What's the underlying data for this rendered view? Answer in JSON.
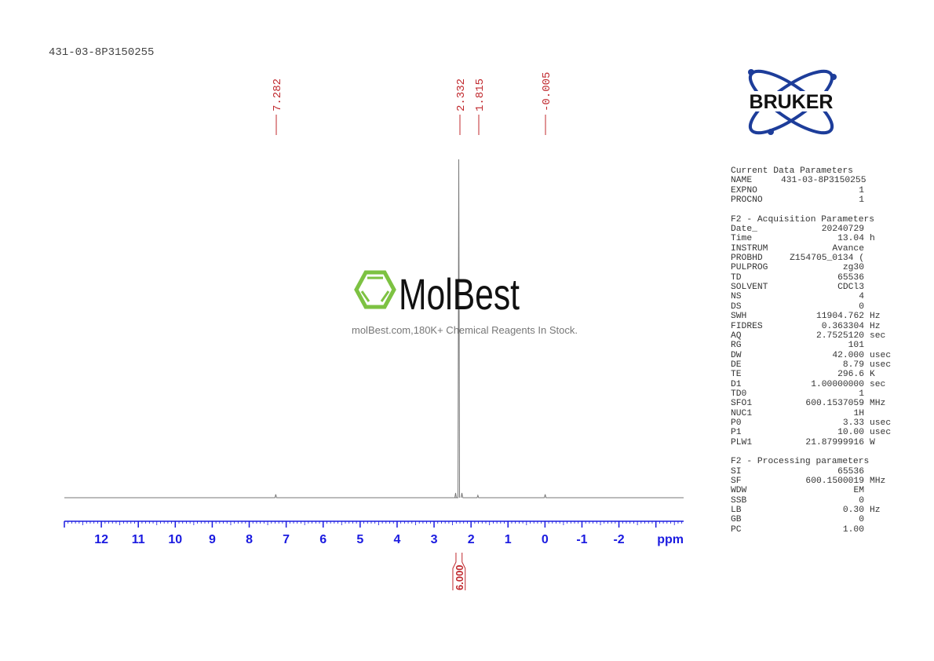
{
  "sample_name": "431-03-8P3150255",
  "watermark": {
    "brand": "MolBest",
    "tagline": "molBest.com,180K+ Chemical Reagents In Stock.",
    "color": "#7dc242"
  },
  "logo": {
    "text": "BRUKER",
    "color": "#1d3d9a"
  },
  "colors": {
    "axis": "#1a1ae0",
    "peak_label": "#c0282d",
    "spectrum": "#777777"
  },
  "chart_data": {
    "type": "line",
    "xlabel": "ppm",
    "xlim": [
      13.0,
      -3.75
    ],
    "x_reversed": true,
    "xticks": [
      "12",
      "11",
      "10",
      "9",
      "8",
      "7",
      "6",
      "5",
      "4",
      "3",
      "2",
      "1",
      "0",
      "-1",
      "-2"
    ],
    "xtick_values": [
      12,
      11,
      10,
      9,
      8,
      7,
      6,
      5,
      4,
      3,
      2,
      1,
      0,
      -1,
      -2
    ],
    "peak_labels": [
      "7.282",
      "2.332",
      "1.815",
      "-0.005"
    ],
    "peaks": [
      {
        "ppm": 7.282,
        "relative_height": 0.01
      },
      {
        "ppm": 2.332,
        "relative_height": 1.0
      },
      {
        "ppm": 1.815,
        "relative_height": 0.004
      },
      {
        "ppm": -0.005,
        "relative_height": 0.01
      }
    ],
    "integrals": [
      {
        "from": 2.45,
        "to": 2.2,
        "value": "6.000"
      }
    ]
  },
  "params": {
    "sections": [
      {
        "title": "Current Data Parameters",
        "rows": [
          {
            "label": "NAME",
            "value": "431-03-8P3150255",
            "unit": ""
          },
          {
            "label": "EXPNO",
            "value": "1",
            "unit": ""
          },
          {
            "label": "PROCNO",
            "value": "1",
            "unit": ""
          }
        ]
      },
      {
        "title": "F2 - Acquisition Parameters",
        "rows": [
          {
            "label": "Date_",
            "value": "20240729",
            "unit": ""
          },
          {
            "label": "Time",
            "value": "13.04",
            "unit": "h"
          },
          {
            "label": "INSTRUM",
            "value": "Avance",
            "unit": ""
          },
          {
            "label": "PROBHD",
            "value": "Z154705_0134 (",
            "unit": ""
          },
          {
            "label": "PULPROG",
            "value": "zg30",
            "unit": ""
          },
          {
            "label": "TD",
            "value": "65536",
            "unit": ""
          },
          {
            "label": "SOLVENT",
            "value": "CDCl3",
            "unit": ""
          },
          {
            "label": "NS",
            "value": "4",
            "unit": ""
          },
          {
            "label": "DS",
            "value": "0",
            "unit": ""
          },
          {
            "label": "SWH",
            "value": "11904.762",
            "unit": "Hz"
          },
          {
            "label": "FIDRES",
            "value": "0.363304",
            "unit": "Hz"
          },
          {
            "label": "AQ",
            "value": "2.7525120",
            "unit": "sec"
          },
          {
            "label": "RG",
            "value": "101",
            "unit": ""
          },
          {
            "label": "DW",
            "value": "42.000",
            "unit": "usec"
          },
          {
            "label": "DE",
            "value": "8.79",
            "unit": "usec"
          },
          {
            "label": "TE",
            "value": "296.6",
            "unit": "K"
          },
          {
            "label": "D1",
            "value": "1.00000000",
            "unit": "sec"
          },
          {
            "label": "TD0",
            "value": "1",
            "unit": ""
          },
          {
            "label": "SFO1",
            "value": "600.1537059",
            "unit": "MHz"
          },
          {
            "label": "NUC1",
            "value": "1H",
            "unit": ""
          },
          {
            "label": "P0",
            "value": "3.33",
            "unit": "usec"
          },
          {
            "label": "P1",
            "value": "10.00",
            "unit": "usec"
          },
          {
            "label": "PLW1",
            "value": "21.87999916",
            "unit": "W"
          }
        ]
      },
      {
        "title": "F2 - Processing parameters",
        "rows": [
          {
            "label": "SI",
            "value": "65536",
            "unit": ""
          },
          {
            "label": "SF",
            "value": "600.1500019",
            "unit": "MHz"
          },
          {
            "label": "WDW",
            "value": "EM",
            "unit": ""
          },
          {
            "label": "SSB",
            "value": "0",
            "unit": ""
          },
          {
            "label": "LB",
            "value": "0.30",
            "unit": "Hz"
          },
          {
            "label": "GB",
            "value": "0",
            "unit": ""
          },
          {
            "label": "PC",
            "value": "1.00",
            "unit": ""
          }
        ]
      }
    ]
  }
}
